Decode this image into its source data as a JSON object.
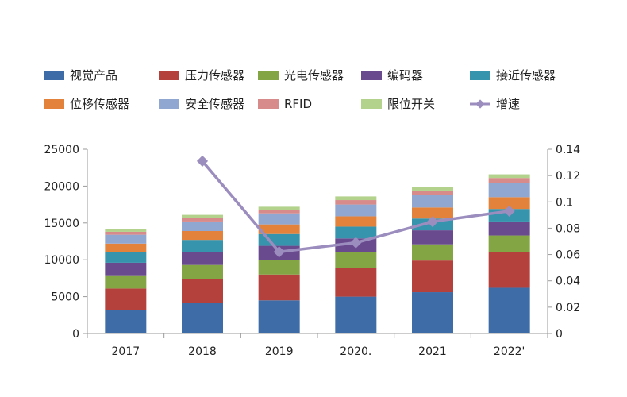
{
  "chart_data": {
    "type": "bar",
    "stacked": true,
    "categories": [
      "2017",
      "2018",
      "2019",
      "2020",
      "2021",
      "2022"
    ],
    "category_labels": [
      "2017",
      "2018",
      "2019",
      "2020.",
      "2021",
      "2022'"
    ],
    "ylim": [
      0,
      25000
    ],
    "yticks": [
      "0",
      "5000",
      "10000",
      "15000",
      "20000",
      "25000"
    ],
    "y2lim": [
      0,
      0.14
    ],
    "y2ticks": [
      "0",
      "0.02",
      "0.04",
      "0.06",
      "0.08",
      "0.1",
      "0.12",
      "0.14"
    ],
    "legend_position": "top",
    "series": [
      {
        "name": "视觉产品",
        "color": "#3e6ca7",
        "values": [
          3200,
          4100,
          4500,
          5000,
          5600,
          6200
        ]
      },
      {
        "name": "压力传感器",
        "color": "#b5413d",
        "values": [
          2900,
          3300,
          3500,
          3900,
          4300,
          4800
        ]
      },
      {
        "name": "光电传感器",
        "color": "#83a544",
        "values": [
          1800,
          1900,
          2000,
          2100,
          2200,
          2300
        ]
      },
      {
        "name": "编码器",
        "color": "#6a4a8f",
        "values": [
          1700,
          1800,
          1900,
          1900,
          1900,
          1900
        ]
      },
      {
        "name": "接近传感器",
        "color": "#3694ad",
        "values": [
          1500,
          1600,
          1600,
          1600,
          1600,
          1700
        ]
      },
      {
        "name": "位移传感器",
        "color": "#e3823a",
        "values": [
          1100,
          1200,
          1300,
          1400,
          1500,
          1600
        ]
      },
      {
        "name": "安全传感器",
        "color": "#90a7d2",
        "values": [
          1200,
          1300,
          1500,
          1600,
          1700,
          1900
        ]
      },
      {
        "name": "RFID",
        "color": "#d88b8b",
        "values": [
          400,
          500,
          500,
          600,
          600,
          700
        ]
      },
      {
        "name": "限位开关",
        "color": "#b3d38d",
        "values": [
          400,
          400,
          400,
          500,
          500,
          500
        ]
      },
      {
        "name": "增速",
        "type": "line",
        "axis": "right",
        "color": "#9c8dbf",
        "values": [
          null,
          0.131,
          0.062,
          0.069,
          0.085,
          0.093
        ]
      }
    ]
  }
}
